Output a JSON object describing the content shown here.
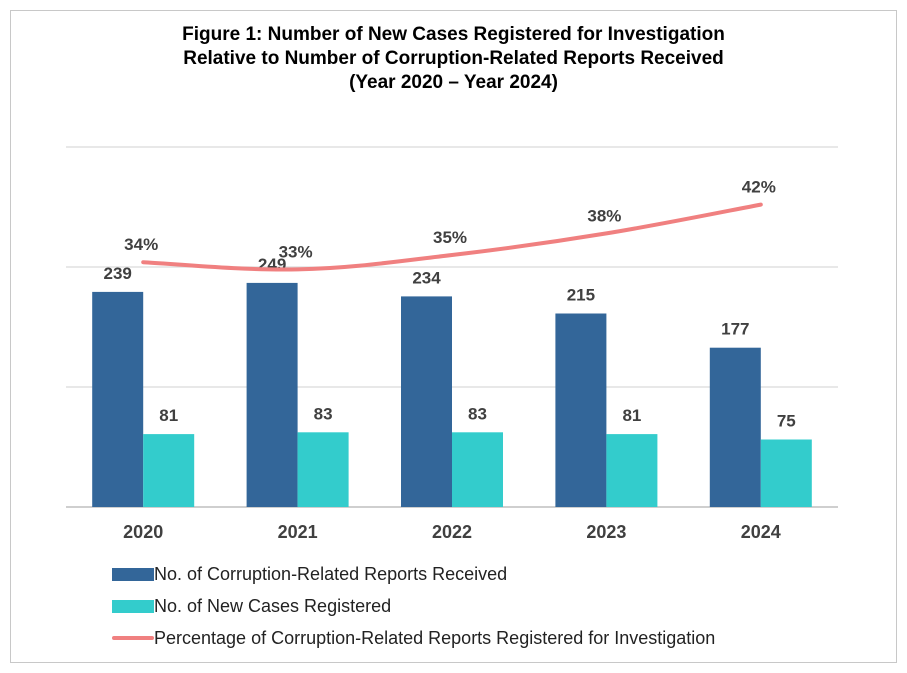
{
  "chart_data": {
    "type": "bar+line",
    "title_lines": [
      "Figure 1: Number of New Cases Registered for Investigation",
      "Relative to Number of Corruption-Related Reports Received",
      "(Year 2020 – Year 2024)"
    ],
    "categories": [
      "2020",
      "2021",
      "2022",
      "2023",
      "2024"
    ],
    "series": [
      {
        "name": "No. of Corruption-Related Reports Received",
        "type": "bar",
        "color": "#336699",
        "values": [
          239,
          249,
          234,
          215,
          177
        ],
        "labels": [
          "239",
          "249",
          "234",
          "215",
          "177"
        ]
      },
      {
        "name": "No. of New Cases Registered",
        "type": "bar",
        "color": "#33cccc",
        "values": [
          81,
          83,
          83,
          81,
          75
        ],
        "labels": [
          "81",
          "83",
          "83",
          "81",
          "75"
        ]
      },
      {
        "name": "Percentage of Corruption-Related Reports Registered for Investigation",
        "type": "line",
        "color": "#f08080",
        "values": [
          34,
          33,
          35,
          38,
          42
        ],
        "labels": [
          "34%",
          "33%",
          "35%",
          "38%",
          "42%"
        ]
      }
    ],
    "bar_axis_range": [
      0,
      400
    ],
    "line_axis_range": [
      0,
      50
    ],
    "grid": true,
    "legend_position": "bottom-left"
  }
}
